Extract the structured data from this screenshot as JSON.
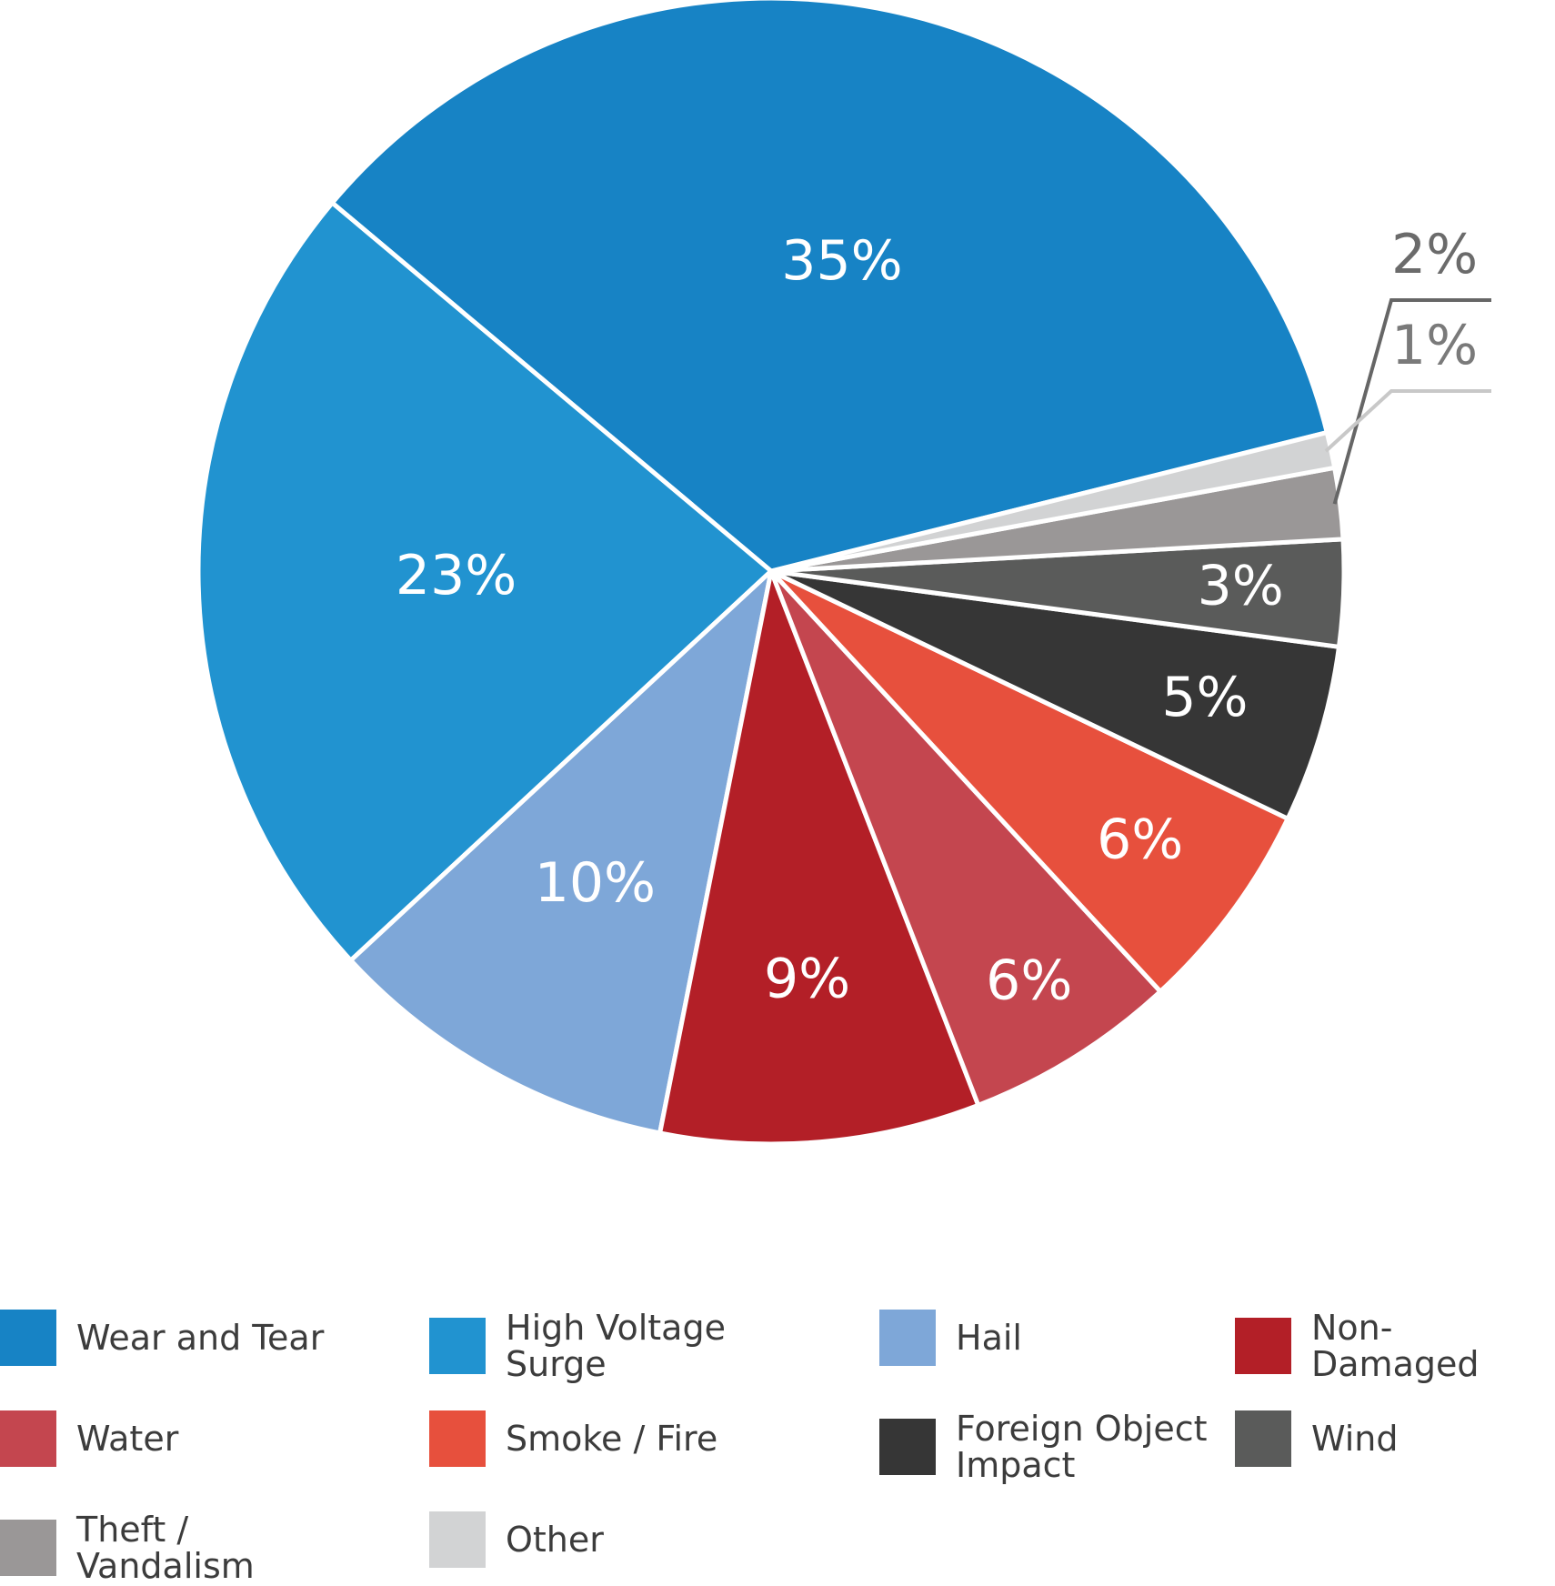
{
  "chart_data": {
    "type": "pie",
    "categories": [
      "Wear and Tear",
      "High Voltage Surge",
      "Hail",
      "Non-Damaged",
      "Water",
      "Smoke / Fire",
      "Foreign Object Impact",
      "Wind",
      "Theft / Vandalism",
      "Other"
    ],
    "values": [
      35,
      23,
      10,
      9,
      6,
      6,
      5,
      3,
      2,
      1
    ],
    "labels": [
      "35%",
      "23%",
      "10%",
      "9%",
      "6%",
      "6%",
      "5%",
      "3%",
      "2%",
      "1%"
    ],
    "colors": [
      "#1783c5",
      "#2193d0",
      "#7ea7d8",
      "#b31f27",
      "#c4464f",
      "#e7503d",
      "#363636",
      "#5a5b5a",
      "#9a9797",
      "#d2d3d4"
    ],
    "start_angle_deg": 14,
    "direction": "counterclockwise",
    "outside_labels": [
      "2%",
      "1%"
    ],
    "legend_position": "bottom"
  }
}
